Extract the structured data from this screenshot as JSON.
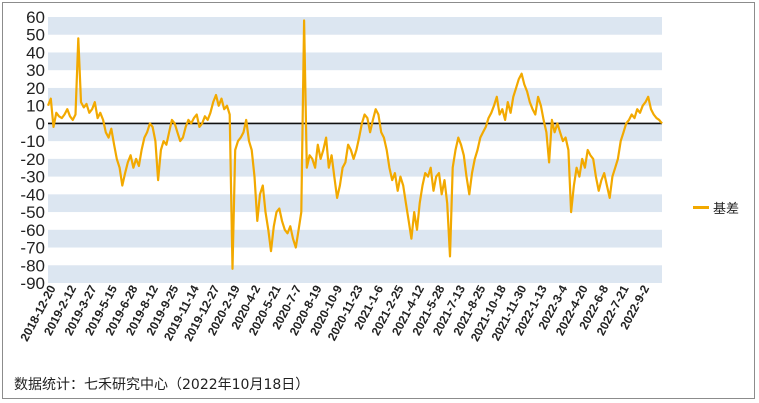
{
  "chart_data": {
    "type": "line",
    "title": "",
    "xlabel": "",
    "ylabel": "",
    "ylim": [
      -90,
      60
    ],
    "yticks": [
      60,
      50,
      40,
      30,
      20,
      10,
      0,
      -10,
      -20,
      -30,
      -40,
      -50,
      -60,
      -70,
      -80,
      -90
    ],
    "x_tick_labels": [
      "2018-12-20",
      "2019-2-12",
      "2019-3-27",
      "2019-5-15",
      "2019-6-28",
      "2019-8-12",
      "2019-9-25",
      "2019-11-14",
      "2019-12-27",
      "2020-2-19",
      "2020-4-2",
      "2020-5-21",
      "2020-7-7",
      "2020-8-19",
      "2020-10-9",
      "2020-11-23",
      "2021-1-6",
      "2021-2-25",
      "2021-4-12",
      "2021-5-28",
      "2021-7-13",
      "2021-8-25",
      "2021-10-18",
      "2021-11-30",
      "2022-1-13",
      "2022-3-4",
      "2022-4-20",
      "2022-6-8",
      "2022-7-21",
      "2022-9-2"
    ],
    "grid": "horizontal alternating bands",
    "legend_position": "right",
    "series": [
      {
        "name": "基差",
        "color": "#f2a900",
        "values": [
          10,
          14,
          -2,
          6,
          4,
          3,
          5,
          8,
          4,
          2,
          5,
          48,
          12,
          9,
          11,
          6,
          8,
          12,
          3,
          6,
          2,
          -5,
          -8,
          -3,
          -12,
          -20,
          -25,
          -35,
          -28,
          -22,
          -18,
          -25,
          -20,
          -24,
          -15,
          -8,
          -5,
          0,
          -2,
          -10,
          -32,
          -15,
          -10,
          -12,
          -5,
          2,
          0,
          -5,
          -10,
          -8,
          -2,
          2,
          0,
          3,
          5,
          -2,
          0,
          4,
          2,
          6,
          12,
          16,
          10,
          14,
          8,
          10,
          5,
          -82,
          -15,
          -10,
          -8,
          -5,
          2,
          -10,
          -15,
          -30,
          -55,
          -40,
          -35,
          -50,
          -60,
          -72,
          -58,
          -50,
          -48,
          -55,
          -60,
          -62,
          -58,
          -65,
          -70,
          -60,
          -50,
          58,
          -25,
          -18,
          -20,
          -25,
          -12,
          -20,
          -15,
          -8,
          -25,
          -18,
          -30,
          -42,
          -35,
          -25,
          -22,
          -12,
          -15,
          -20,
          -15,
          -8,
          0,
          5,
          3,
          -5,
          2,
          8,
          5,
          -5,
          -8,
          -15,
          -25,
          -32,
          -28,
          -38,
          -30,
          -35,
          -45,
          -55,
          -65,
          -50,
          -60,
          -45,
          -35,
          -28,
          -30,
          -25,
          -38,
          -30,
          -28,
          -40,
          -32,
          -45,
          -75,
          -25,
          -15,
          -8,
          -12,
          -18,
          -30,
          -40,
          -28,
          -20,
          -15,
          -8,
          -5,
          -2,
          3,
          6,
          10,
          15,
          5,
          8,
          2,
          12,
          6,
          15,
          20,
          25,
          28,
          22,
          18,
          12,
          8,
          5,
          15,
          10,
          2,
          -5,
          -22,
          2,
          -5,
          0,
          -5,
          -10,
          -8,
          -15,
          -50,
          -35,
          -25,
          -30,
          -20,
          -25,
          -15,
          -18,
          -20,
          -30,
          -38,
          -32,
          -28,
          -35,
          -42,
          -30,
          -25,
          -20,
          -10,
          -5,
          0,
          2,
          5,
          3,
          8,
          6,
          10,
          12,
          15,
          8,
          5,
          3,
          2,
          0
        ]
      }
    ]
  },
  "legend": {
    "label": "基差"
  },
  "source": "数据统计：七禾研究中心（2022年10月18日）"
}
